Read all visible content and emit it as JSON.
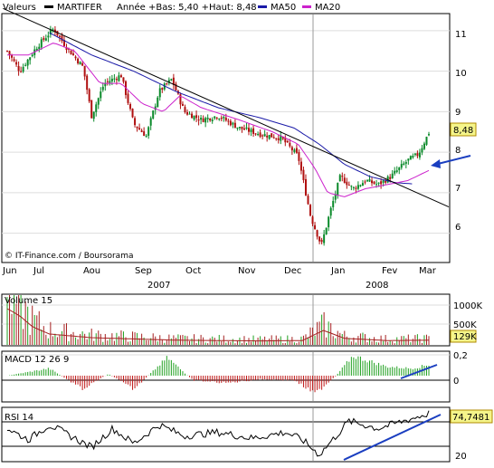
{
  "legend": {
    "label": "Valeurs",
    "series_name": "MARTIFER",
    "year_range": "Année +Bas: 5,40 +Haut: 8,48",
    "ma50": "MA50",
    "ma20": "MA20"
  },
  "colors": {
    "candle_up": "#0a8a2a",
    "candle_down": "#b01010",
    "ma50": "#1a1aa8",
    "ma20": "#cc22cc",
    "trendline": "#000000",
    "annotation": "#1a3ec0",
    "volume": "#a52020",
    "macd_up": "#20a020",
    "macd_down": "#c01818",
    "last_price_box": "#f5f58a",
    "grid": "#dddddd"
  },
  "credit": "© IT-Finance.com / Boursorama",
  "months": [
    "Jun",
    "Jul",
    "Aou",
    "Sep",
    "Oct",
    "Nov",
    "Dec",
    "Jan",
    "Fev",
    "Mar"
  ],
  "years": [
    "2007",
    "2008"
  ],
  "price_ticks": [
    "11",
    "10",
    "9",
    "8",
    "7",
    "6"
  ],
  "last_price": "8,48",
  "volume_panel": {
    "label": "Volume 15",
    "ticks": [
      "1000K",
      "500K"
    ],
    "last": "129K"
  },
  "macd_panel": {
    "label": "MACD 12 26 9",
    "ticks": [
      "0,2",
      "0"
    ]
  },
  "rsi_panel": {
    "label": "RSI 14",
    "last": "74,7481",
    "ticks": [
      "20"
    ]
  },
  "chart_data": {
    "type": "candlestick",
    "title": "MARTIFER",
    "y_range": [
      5.3,
      11.4
    ],
    "x_labels": [
      "Jun",
      "Jul",
      "Aou",
      "Sep",
      "Oct",
      "Nov",
      "Dec",
      "Jan",
      "Fev",
      "Mar"
    ],
    "close_keypoints": [
      {
        "t": 0.0,
        "v": 10.5
      },
      {
        "t": 0.03,
        "v": 10.0
      },
      {
        "t": 0.07,
        "v": 10.6
      },
      {
        "t": 0.11,
        "v": 11.05
      },
      {
        "t": 0.14,
        "v": 10.6
      },
      {
        "t": 0.18,
        "v": 10.1
      },
      {
        "t": 0.2,
        "v": 8.9
      },
      {
        "t": 0.23,
        "v": 9.7
      },
      {
        "t": 0.27,
        "v": 9.9
      },
      {
        "t": 0.3,
        "v": 8.7
      },
      {
        "t": 0.33,
        "v": 8.4
      },
      {
        "t": 0.36,
        "v": 9.5
      },
      {
        "t": 0.39,
        "v": 9.8
      },
      {
        "t": 0.42,
        "v": 9.0
      },
      {
        "t": 0.46,
        "v": 8.8
      },
      {
        "t": 0.5,
        "v": 8.9
      },
      {
        "t": 0.55,
        "v": 8.6
      },
      {
        "t": 0.6,
        "v": 8.45
      },
      {
        "t": 0.65,
        "v": 8.35
      },
      {
        "t": 0.69,
        "v": 7.9
      },
      {
        "t": 0.72,
        "v": 6.4
      },
      {
        "t": 0.745,
        "v": 5.7
      },
      {
        "t": 0.765,
        "v": 6.5
      },
      {
        "t": 0.79,
        "v": 7.4
      },
      {
        "t": 0.82,
        "v": 7.1
      },
      {
        "t": 0.85,
        "v": 7.3
      },
      {
        "t": 0.88,
        "v": 7.2
      },
      {
        "t": 0.91,
        "v": 7.4
      },
      {
        "t": 0.95,
        "v": 7.8
      },
      {
        "t": 0.975,
        "v": 7.95
      },
      {
        "t": 1.0,
        "v": 8.48
      }
    ],
    "ma20_keypoints": [
      {
        "t": 0.0,
        "v": 10.4
      },
      {
        "t": 0.05,
        "v": 10.4
      },
      {
        "t": 0.11,
        "v": 10.7
      },
      {
        "t": 0.16,
        "v": 10.5
      },
      {
        "t": 0.22,
        "v": 9.7
      },
      {
        "t": 0.27,
        "v": 9.7
      },
      {
        "t": 0.32,
        "v": 9.2
      },
      {
        "t": 0.37,
        "v": 9.0
      },
      {
        "t": 0.41,
        "v": 9.4
      },
      {
        "t": 0.46,
        "v": 9.1
      },
      {
        "t": 0.55,
        "v": 8.8
      },
      {
        "t": 0.63,
        "v": 8.5
      },
      {
        "t": 0.69,
        "v": 8.2
      },
      {
        "t": 0.73,
        "v": 7.6
      },
      {
        "t": 0.76,
        "v": 7.0
      },
      {
        "t": 0.8,
        "v": 6.9
      },
      {
        "t": 0.85,
        "v": 7.1
      },
      {
        "t": 0.9,
        "v": 7.2
      },
      {
        "t": 0.95,
        "v": 7.3
      },
      {
        "t": 1.0,
        "v": 7.55
      }
    ],
    "ma50_keypoints": [
      {
        "t": 0.1,
        "v": 10.95
      },
      {
        "t": 0.2,
        "v": 10.4
      },
      {
        "t": 0.3,
        "v": 10.0
      },
      {
        "t": 0.4,
        "v": 9.5
      },
      {
        "t": 0.5,
        "v": 9.1
      },
      {
        "t": 0.6,
        "v": 8.85
      },
      {
        "t": 0.68,
        "v": 8.6
      },
      {
        "t": 0.74,
        "v": 8.2
      },
      {
        "t": 0.8,
        "v": 7.7
      },
      {
        "t": 0.86,
        "v": 7.4
      },
      {
        "t": 0.92,
        "v": 7.25
      },
      {
        "t": 0.96,
        "v": 7.22
      }
    ],
    "trendline": [
      {
        "t": 0.0,
        "v": 11.55
      },
      {
        "t": 1.0,
        "v": 6.8
      }
    ],
    "volume_keypoints": [
      {
        "t": 0.0,
        "v": 1000
      },
      {
        "t": 0.03,
        "v": 800
      },
      {
        "t": 0.06,
        "v": 500
      },
      {
        "t": 0.1,
        "v": 300
      },
      {
        "t": 0.2,
        "v": 200
      },
      {
        "t": 0.4,
        "v": 130
      },
      {
        "t": 0.6,
        "v": 110
      },
      {
        "t": 0.7,
        "v": 120
      },
      {
        "t": 0.75,
        "v": 400
      },
      {
        "t": 0.8,
        "v": 180
      },
      {
        "t": 0.9,
        "v": 120
      },
      {
        "t": 1.0,
        "v": 129
      }
    ],
    "volume_range": [
      0,
      1100
    ],
    "macd_keypoints": [
      {
        "t": 0.0,
        "v": 0.0
      },
      {
        "t": 0.1,
        "v": 0.08
      },
      {
        "t": 0.18,
        "v": -0.15
      },
      {
        "t": 0.24,
        "v": 0.02
      },
      {
        "t": 0.3,
        "v": -0.15
      },
      {
        "t": 0.38,
        "v": 0.2
      },
      {
        "t": 0.44,
        "v": -0.05
      },
      {
        "t": 0.52,
        "v": -0.08
      },
      {
        "t": 0.6,
        "v": -0.04
      },
      {
        "t": 0.68,
        "v": -0.05
      },
      {
        "t": 0.73,
        "v": -0.2
      },
      {
        "t": 0.78,
        "v": 0.0
      },
      {
        "t": 0.82,
        "v": 0.22
      },
      {
        "t": 0.9,
        "v": 0.1
      },
      {
        "t": 0.96,
        "v": 0.08
      },
      {
        "t": 1.0,
        "v": 0.12
      }
    ],
    "macd_range": [
      -0.28,
      0.26
    ],
    "rsi_keypoints": [
      {
        "t": 0.0,
        "v": 55
      },
      {
        "t": 0.05,
        "v": 40
      },
      {
        "t": 0.1,
        "v": 60
      },
      {
        "t": 0.15,
        "v": 45
      },
      {
        "t": 0.2,
        "v": 30
      },
      {
        "t": 0.25,
        "v": 55
      },
      {
        "t": 0.3,
        "v": 35
      },
      {
        "t": 0.36,
        "v": 60
      },
      {
        "t": 0.42,
        "v": 45
      },
      {
        "t": 0.5,
        "v": 50
      },
      {
        "t": 0.58,
        "v": 42
      },
      {
        "t": 0.66,
        "v": 50
      },
      {
        "t": 0.7,
        "v": 40
      },
      {
        "t": 0.74,
        "v": 20
      },
      {
        "t": 0.78,
        "v": 45
      },
      {
        "t": 0.81,
        "v": 65
      },
      {
        "t": 0.88,
        "v": 55
      },
      {
        "t": 0.94,
        "v": 65
      },
      {
        "t": 1.0,
        "v": 75
      }
    ],
    "rsi_range": [
      12,
      82
    ]
  }
}
